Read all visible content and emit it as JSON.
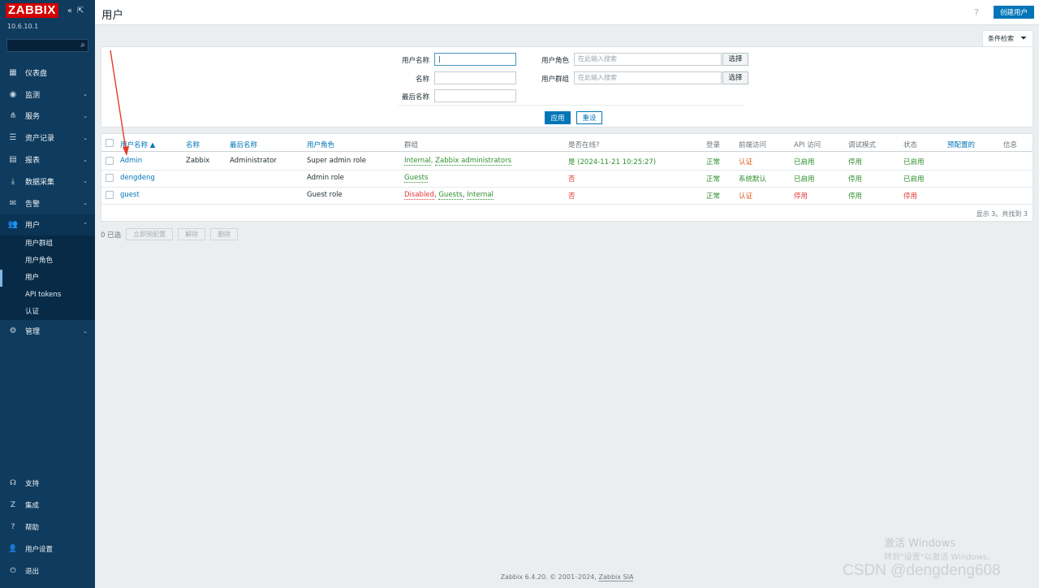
{
  "sidebar": {
    "logo": "ZABBIX",
    "version": "10.6.10.1",
    "menu": [
      {
        "label": "仪表盘",
        "icon": "dashboard-icon"
      },
      {
        "label": "监测",
        "icon": "eye-icon"
      },
      {
        "label": "服务",
        "icon": "services-icon"
      },
      {
        "label": "资产记录",
        "icon": "inventory-icon"
      },
      {
        "label": "报表",
        "icon": "reports-icon"
      },
      {
        "label": "数据采集",
        "icon": "download-icon"
      },
      {
        "label": "告警",
        "icon": "mail-icon"
      },
      {
        "label": "用户",
        "icon": "users-icon"
      },
      {
        "label": "管理",
        "icon": "gear-icon"
      }
    ],
    "users_submenu": [
      "用户群组",
      "用户角色",
      "用户",
      "API tokens",
      "认证"
    ],
    "bottom": [
      "支持",
      "集成",
      "帮助",
      "用户设置",
      "退出"
    ]
  },
  "header": {
    "title": "用户",
    "help": "?",
    "create_button": "创建用户"
  },
  "filter": {
    "tab_label": "条件检索",
    "username_label": "用户名称",
    "name_label": "名称",
    "lastname_label": "最后名称",
    "role_label": "用户角色",
    "group_label": "用户群组",
    "role_placeholder": "在此输入搜索",
    "group_placeholder": "在此输入搜索",
    "select_label": "选择",
    "apply_label": "应用",
    "reset_label": "重设"
  },
  "table": {
    "headers": [
      "用户名称 ▲",
      "名称",
      "最后名称",
      "用户角色",
      "群组",
      "是否在线?",
      "登录",
      "前端访问",
      "API 访问",
      "调试模式",
      "状态",
      "预配置的",
      "信息"
    ],
    "rows": [
      {
        "username": "Admin",
        "name": "Zabbix",
        "lastname": "Administrator",
        "role": "Super admin role",
        "group_a": "Internal",
        "sep1": ", ",
        "group_b": "Zabbix administrators",
        "group_c": "",
        "online": "是 (2024-11-21 10:25:27)",
        "login": "正常",
        "frontend": "认证",
        "api": "已启用",
        "debug": "停用",
        "status": "已启用"
      },
      {
        "username": "dengdeng",
        "name": "",
        "lastname": "",
        "role": "Admin role",
        "group_a": "Guests",
        "sep1": "",
        "group_b": "",
        "group_c": "",
        "online": "否",
        "login": "正常",
        "frontend": "系统默认",
        "api": "已启用",
        "debug": "停用",
        "status": "已启用"
      },
      {
        "username": "guest",
        "name": "",
        "lastname": "",
        "role": "Guest role",
        "group_a": "Disabled",
        "sep1": ", ",
        "group_b": "Guests",
        "group_c": "Internal",
        "online": "否",
        "login": "正常",
        "frontend": "认证",
        "api": "停用",
        "debug": "停用",
        "status": "停用"
      }
    ],
    "count_text": "显示 3。共找到 3"
  },
  "mass_actions": {
    "selected": "0 已选",
    "provision": "立即预配置",
    "unblock": "解除",
    "delete": "删除"
  },
  "footer": {
    "text": "Zabbix 6.4.20. © 2001–2024, ",
    "link": "Zabbix SIA"
  },
  "overlay": {
    "activate_line1": "激活 Windows",
    "activate_line2": "转到\"设置\"以激活 Windows。",
    "csdn": "CSDN @dengdeng608"
  },
  "colors": {
    "accent": "#0275b8",
    "sidebar": "#0e3b5e",
    "logo": "#d40000",
    "ok": "#2e8f2e",
    "bad": "#e33734"
  }
}
